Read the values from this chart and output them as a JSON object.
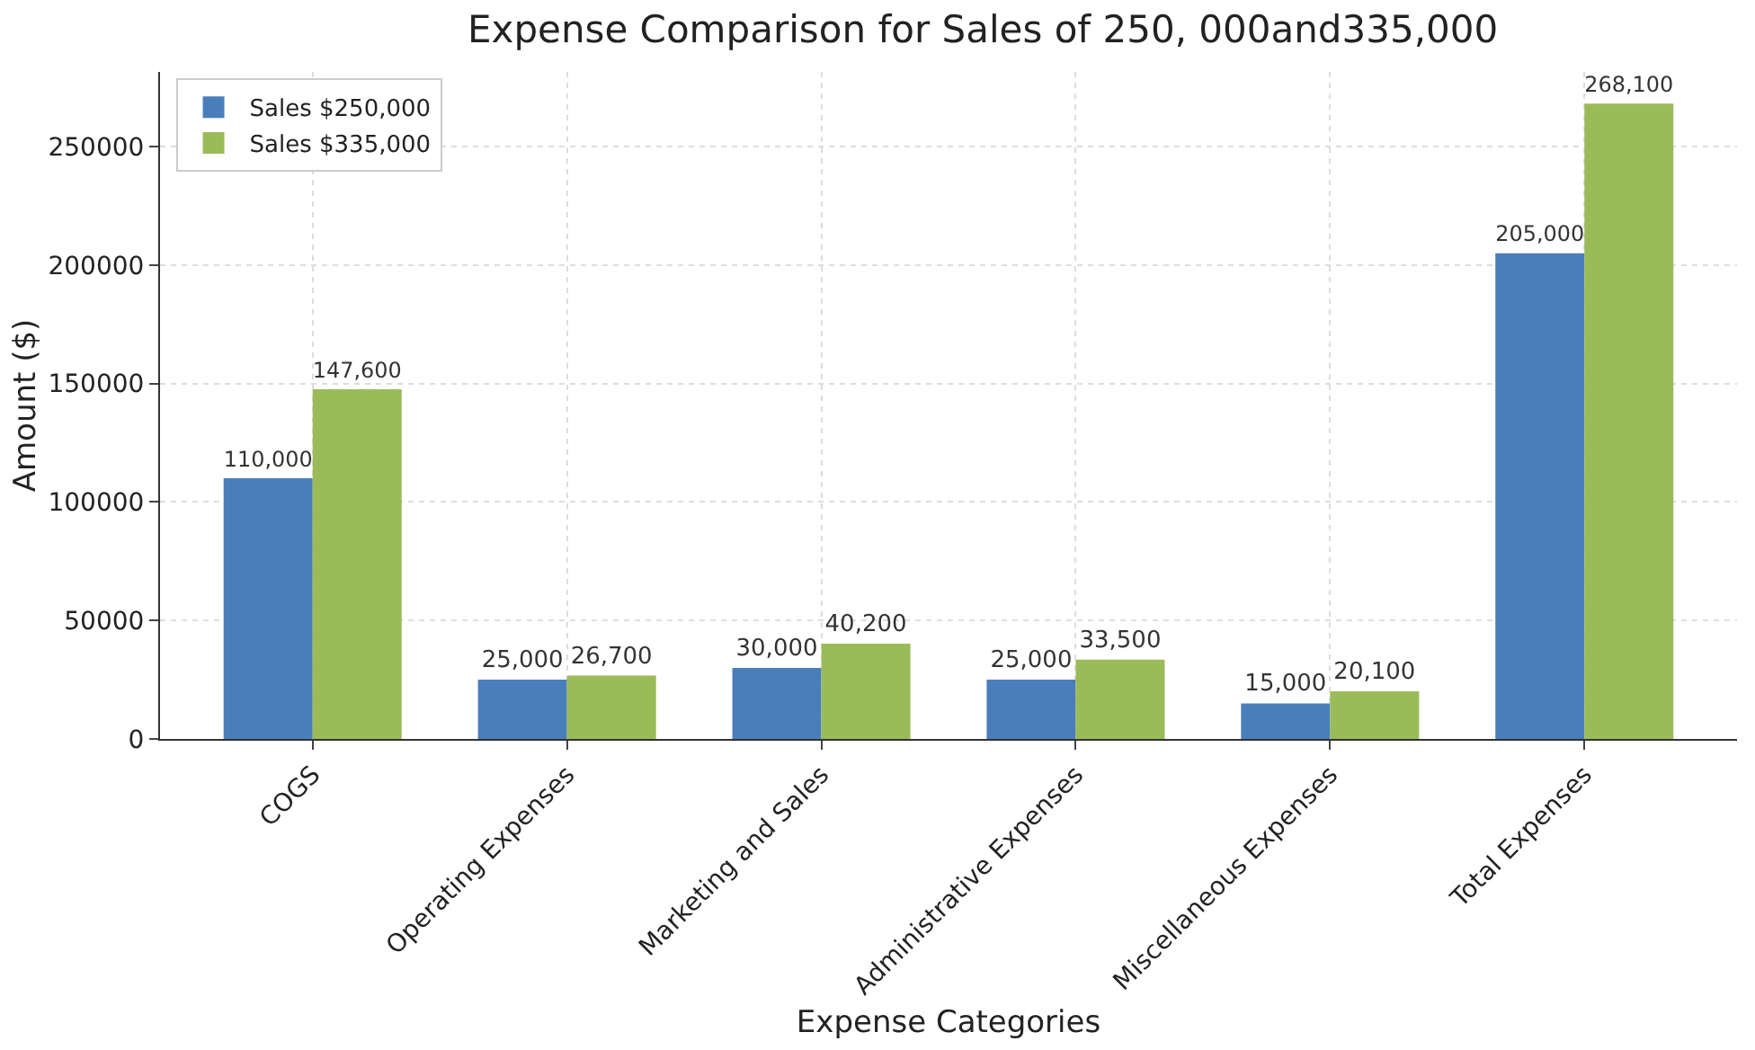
{
  "chart_data": {
    "type": "bar",
    "title": "Expense Comparison for Sales of 250, 000and335,000",
    "xlabel": "Expense Categories",
    "ylabel": "Amount ($)",
    "categories": [
      "COGS",
      "Operating Expenses",
      "Marketing and Sales",
      "Administrative Expenses",
      "Miscellaneous Expenses",
      "Total Expenses"
    ],
    "series": [
      {
        "name": "Sales $250,000",
        "color": "#4a7ebb",
        "values": [
          110000,
          25000,
          30000,
          25000,
          15000,
          205000
        ],
        "value_labels": [
          "110,000",
          "25,000",
          "30,000",
          "25,000",
          "15,000",
          "205,000"
        ]
      },
      {
        "name": "Sales $335,000",
        "color": "#9bbb59",
        "values": [
          147600,
          26700,
          40200,
          33500,
          20100,
          268100
        ],
        "value_labels": [
          "147,600",
          "26,700",
          "40,200",
          "33,500",
          "20,100",
          "268,100"
        ]
      }
    ],
    "ylim": [
      0,
      281500
    ],
    "yticks": [
      0,
      50000,
      100000,
      150000,
      200000,
      250000
    ],
    "grid": true,
    "legend": "top left"
  }
}
